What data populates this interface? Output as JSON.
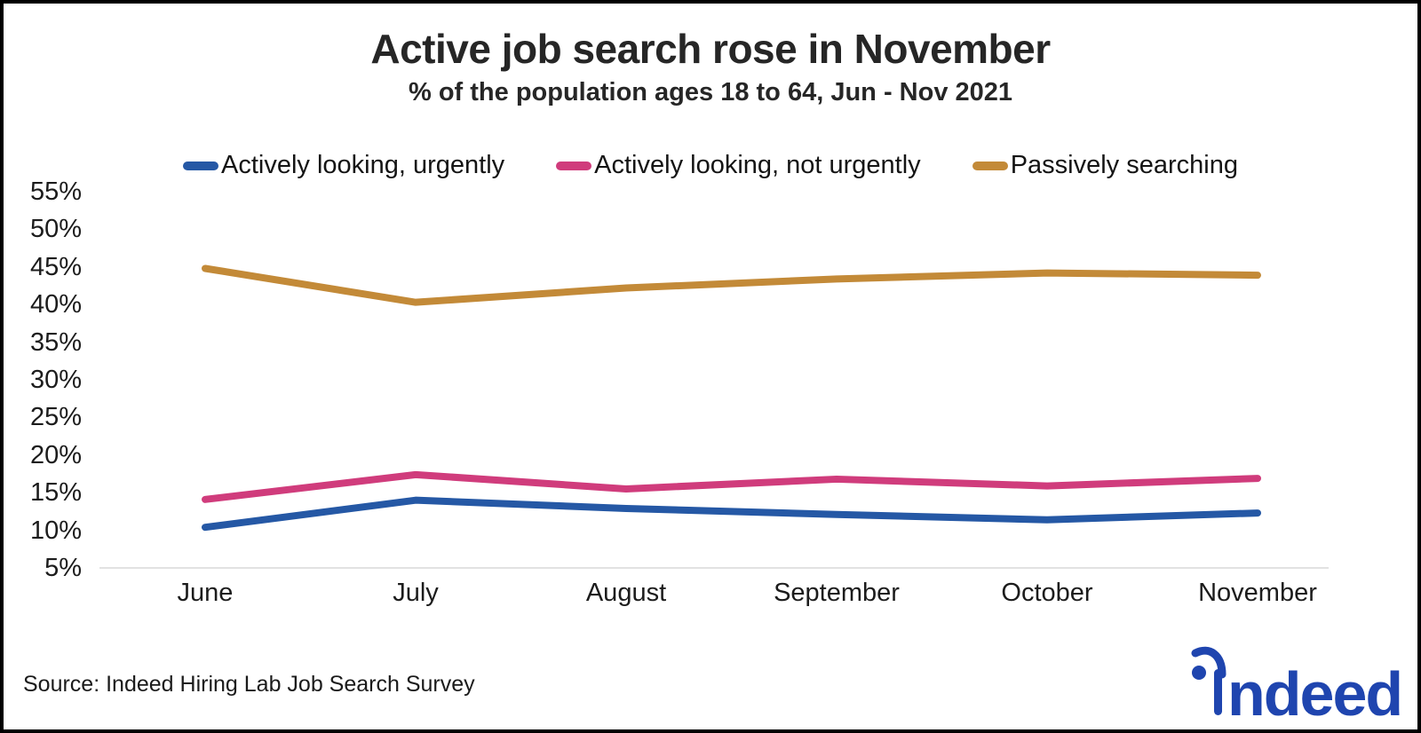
{
  "header": {
    "title": "Active job search rose in November",
    "subtitle": "% of the population ages 18 to 64, Jun - Nov 2021"
  },
  "chart_data": {
    "type": "line",
    "title": "Active job search rose in November",
    "subtitle": "% of the population ages 18 to 64, Jun - Nov 2021",
    "xlabel": "",
    "ylabel": "",
    "categories": [
      "June",
      "July",
      "August",
      "September",
      "October",
      "November"
    ],
    "series": [
      {
        "name": "Actively looking, urgently",
        "color": "#2558a5",
        "values": [
          10.4,
          14.0,
          12.9,
          12.1,
          11.4,
          12.3
        ]
      },
      {
        "name": "Actively looking, not urgently",
        "color": "#d03c7c",
        "values": [
          14.1,
          17.4,
          15.5,
          16.8,
          15.9,
          16.9
        ]
      },
      {
        "name": "Passively searching",
        "color": "#c38a38",
        "values": [
          44.8,
          40.3,
          42.2,
          43.4,
          44.2,
          43.9
        ]
      }
    ],
    "y_ticks": [
      "55%",
      "50%",
      "45%",
      "40%",
      "35%",
      "30%",
      "25%",
      "20%",
      "15%",
      "10%",
      "5%"
    ],
    "y_tick_values": [
      55,
      50,
      45,
      40,
      35,
      30,
      25,
      20,
      15,
      10,
      5
    ],
    "ylim": [
      5,
      55
    ],
    "grid": false,
    "legend_position": "top",
    "axis_line_color": "#e2e2e2"
  },
  "footer": {
    "source": "Source: Indeed Hiring Lab Job Search Survey",
    "logo_text": "ndeed",
    "logo_color": "#1f45af"
  }
}
